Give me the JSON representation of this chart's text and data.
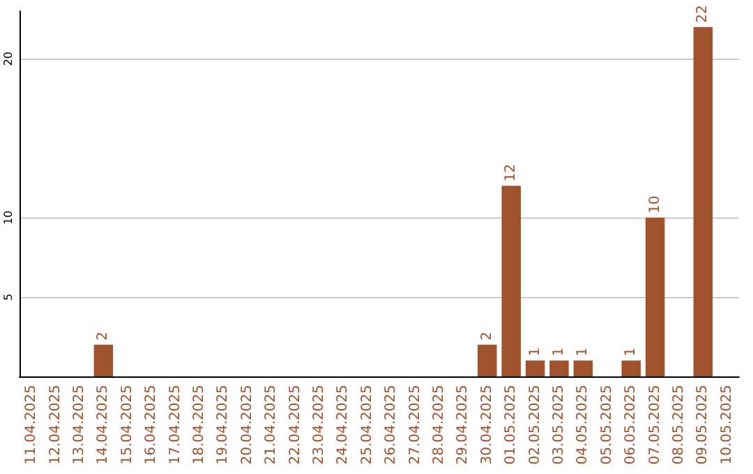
{
  "chart_data": {
    "type": "bar",
    "categories": [
      "11.04.2025",
      "12.04.2025",
      "13.04.2025",
      "14.04.2025",
      "15.04.2025",
      "16.04.2025",
      "17.04.2025",
      "18.04.2025",
      "19.04.2025",
      "20.04.2025",
      "21.04.2025",
      "22.04.2025",
      "23.04.2025",
      "24.04.2025",
      "25.04.2025",
      "26.04.2025",
      "27.04.2025",
      "28.04.2025",
      "29.04.2025",
      "30.04.2025",
      "01.05.2025",
      "02.05.2025",
      "03.05.2025",
      "04.05.2025",
      "05.05.2025",
      "06.05.2025",
      "07.05.2025",
      "08.05.2025",
      "09.05.2025",
      "10.05.2025"
    ],
    "values": [
      0,
      0,
      0,
      2,
      0,
      0,
      0,
      0,
      0,
      0,
      0,
      0,
      0,
      0,
      0,
      0,
      0,
      0,
      0,
      2,
      12,
      1,
      1,
      1,
      0,
      1,
      10,
      0,
      22,
      0
    ],
    "value_labels": [
      null,
      null,
      null,
      "2",
      null,
      null,
      null,
      null,
      null,
      null,
      null,
      null,
      null,
      null,
      null,
      null,
      null,
      null,
      null,
      "2",
      "12",
      "1",
      "1",
      "1",
      null,
      "1",
      "10",
      null,
      "22",
      null
    ],
    "color": "#a0522d",
    "ylim": [
      0,
      23
    ],
    "yticks": [
      5,
      10,
      20
    ],
    "grid": "y"
  }
}
